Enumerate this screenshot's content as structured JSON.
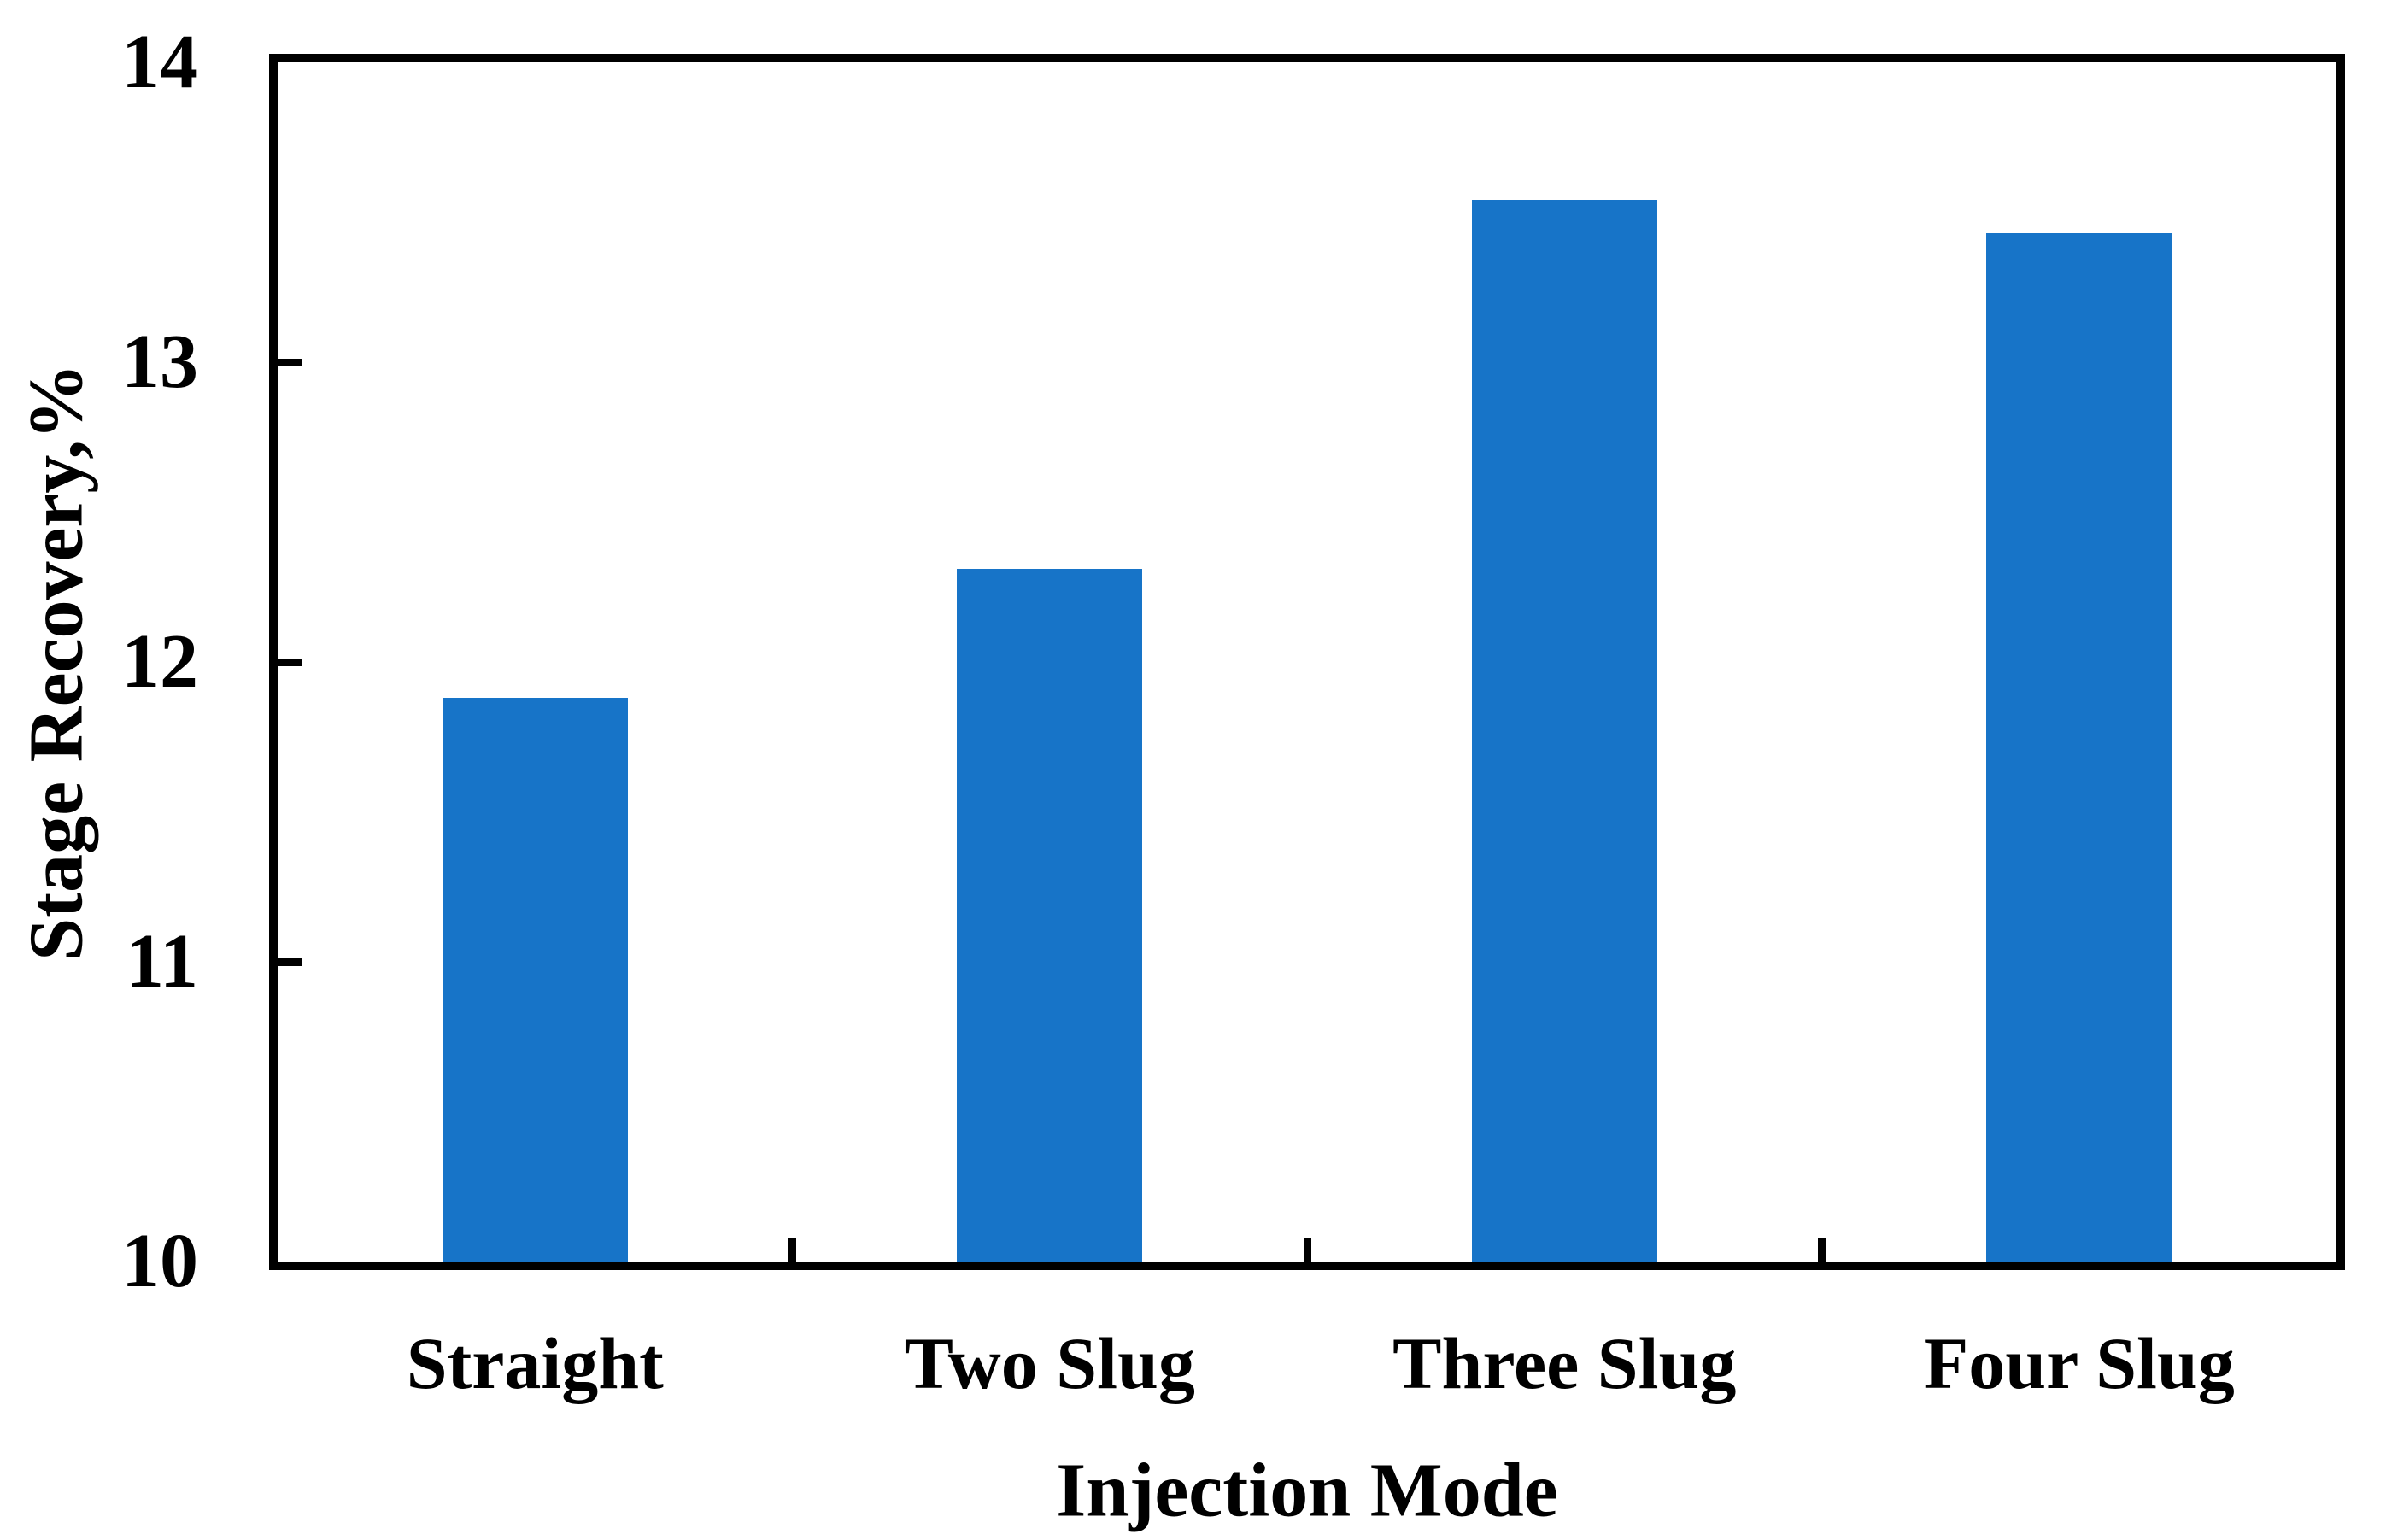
{
  "figure": {
    "background": "#ffffff"
  },
  "chart_data": {
    "type": "bar",
    "categories": [
      "Straight",
      "Two Slug",
      "Three Slug",
      "Four Slug"
    ],
    "values": [
      11.88,
      12.31,
      13.54,
      13.43
    ],
    "title": "",
    "xlabel": "Injection Mode",
    "ylabel": "Stage Recovery,%",
    "ylim": [
      10,
      14
    ],
    "yticks": [
      10,
      11,
      12,
      13,
      14
    ],
    "grid": "off",
    "legend": "none",
    "bar_color": "#1774C8",
    "axis_color": "#000000",
    "text_color": "#000000"
  }
}
